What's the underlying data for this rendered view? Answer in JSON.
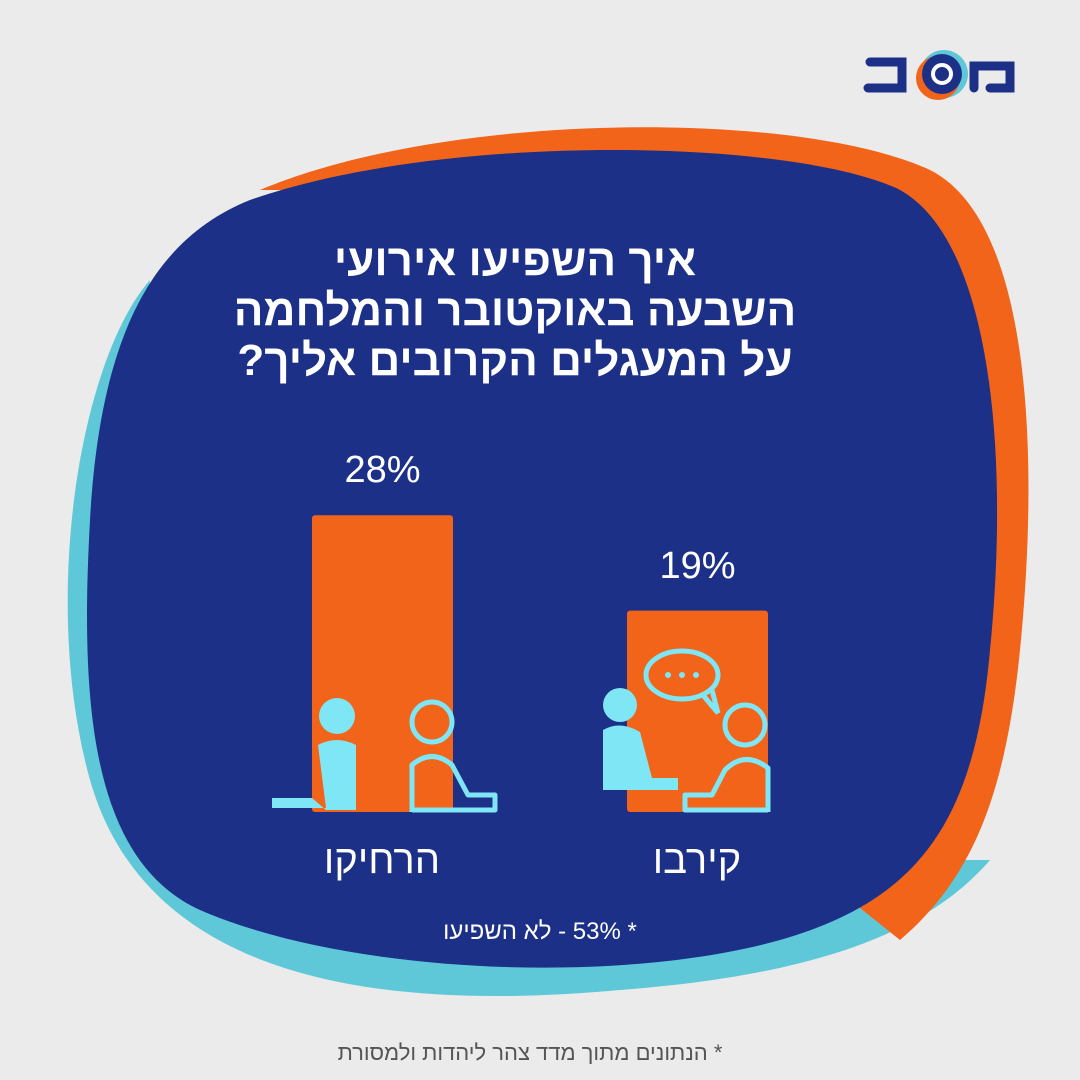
{
  "logo": {
    "text": "משב"
  },
  "title_lines": [
    "איך השפיעו אירועי",
    "השבעה באוקטובר והמלחמה",
    "על המעגלים הקרובים אליך?"
  ],
  "colors": {
    "background": "#ebebeb",
    "blob": "#1c3087",
    "orange": "#f26419",
    "cyan": "#5fc8d8",
    "icon": "#7ee6f5"
  },
  "chart_data": {
    "type": "bar",
    "categories": [
      "הרחיקו",
      "קירבו"
    ],
    "values": [
      28,
      19
    ],
    "value_labels": [
      "28%",
      "19%"
    ],
    "unit": "%",
    "grid": false,
    "icons": [
      "people-sitting-apart-icon",
      "people-talking-icon"
    ]
  },
  "note": "* 53% - לא השפיעו",
  "footer": "* הנתונים מתוך מדד צהר ליהדות ולמסורת"
}
